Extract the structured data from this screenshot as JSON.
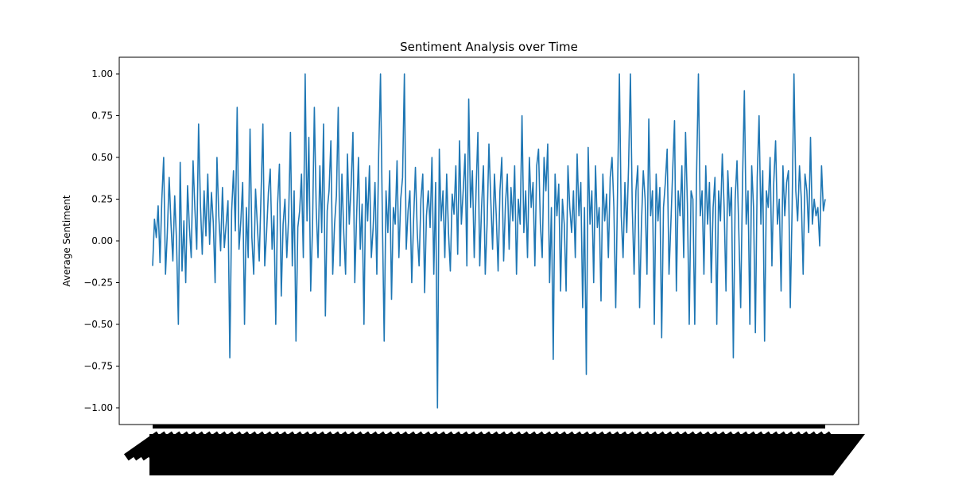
{
  "chart_data": {
    "type": "line",
    "title": "Sentiment Analysis over Time",
    "xlabel": "",
    "ylabel": "Average Sentiment",
    "ylim": [
      -1.1,
      1.1
    ],
    "yticks": [
      1.0,
      0.75,
      0.5,
      0.25,
      0.0,
      -0.25,
      -0.5,
      -0.75,
      -1.0
    ],
    "ytick_labels": [
      "1.00",
      "0.75",
      "0.50",
      "0.25",
      "0.00",
      "−0.25",
      "−0.50",
      "−0.75",
      "−1.00"
    ],
    "xtick_labels_legible": false,
    "xtick_labels_note": "",
    "grid": false,
    "legend": "none",
    "colors": {
      "line": "#1f77b4",
      "axes": "#000000",
      "background": "#ffffff"
    },
    "series": [
      {
        "values": [
          -0.15,
          0.13,
          0.02,
          0.21,
          -0.13,
          0.25,
          0.5,
          -0.2,
          0.05,
          0.38,
          0.1,
          -0.12,
          0.27,
          0.0,
          -0.5,
          0.47,
          -0.18,
          0.12,
          -0.25,
          0.33,
          0.08,
          -0.1,
          0.48,
          0.19,
          -0.05,
          0.7,
          0.22,
          -0.08,
          0.3,
          0.03,
          0.4,
          -0.02,
          0.29,
          0.11,
          -0.25,
          0.5,
          0.15,
          -0.06,
          0.32,
          -0.04,
          0.1,
          0.24,
          -0.7,
          0.18,
          0.42,
          0.06,
          0.8,
          -0.05,
          0.12,
          0.35,
          -0.5,
          0.2,
          -0.1,
          0.67,
          0.02,
          -0.2,
          0.31,
          0.09,
          -0.12,
          0.28,
          0.7,
          -0.15,
          0.05,
          0.29,
          0.43,
          -0.05,
          0.15,
          -0.5,
          0.22,
          0.46,
          -0.33,
          0.1,
          0.25,
          -0.1,
          0.14,
          0.65,
          -0.15,
          0.3,
          -0.6,
          0.08,
          0.18,
          0.4,
          -0.1,
          1.0,
          0.12,
          0.62,
          -0.3,
          0.08,
          0.8,
          0.2,
          -0.1,
          0.45,
          0.05,
          0.7,
          -0.45,
          0.18,
          0.3,
          0.6,
          -0.2,
          0.1,
          0.27,
          0.8,
          -0.15,
          0.4,
          0.05,
          -0.2,
          0.52,
          0.1,
          0.33,
          0.65,
          -0.25,
          0.15,
          0.5,
          -0.05,
          0.22,
          -0.5,
          0.38,
          0.12,
          0.45,
          -0.1,
          0.08,
          0.35,
          -0.2,
          0.52,
          1.0,
          0.15,
          -0.6,
          0.3,
          0.05,
          0.42,
          -0.35,
          0.2,
          0.1,
          0.48,
          -0.1,
          0.25,
          0.38,
          1.0,
          -0.05,
          0.18,
          0.3,
          -0.25,
          0.12,
          0.44,
          0.05,
          -0.15,
          0.25,
          0.4,
          -0.31,
          0.15,
          0.3,
          0.08,
          0.5,
          -0.2,
          0.35,
          -1.0,
          0.55,
          0.12,
          0.3,
          -0.1,
          0.4,
          0.05,
          -0.18,
          0.28,
          0.16,
          0.45,
          -0.08,
          0.6,
          0.1,
          0.3,
          0.52,
          -0.15,
          0.85,
          0.2,
          0.42,
          -0.1,
          0.3,
          0.65,
          -0.15,
          0.2,
          0.45,
          -0.2,
          0.1,
          0.58,
          0.25,
          -0.05,
          0.4,
          0.15,
          -0.18,
          0.3,
          0.5,
          -0.12,
          0.22,
          0.4,
          -0.05,
          0.32,
          0.12,
          0.45,
          -0.2,
          0.25,
          0.1,
          0.75,
          0.05,
          0.3,
          -0.1,
          0.5,
          0.2,
          0.35,
          -0.15,
          0.45,
          0.55,
          0.1,
          -0.1,
          0.5,
          0.3,
          0.58,
          -0.25,
          0.2,
          -0.71,
          0.4,
          0.15,
          0.34,
          -0.3,
          0.25,
          0.1,
          -0.3,
          0.45,
          0.2,
          0.05,
          0.3,
          -0.1,
          0.52,
          0.15,
          0.35,
          -0.4,
          0.2,
          -0.8,
          0.56,
          0.1,
          0.3,
          -0.25,
          0.45,
          0.08,
          0.2,
          -0.36,
          0.4,
          0.12,
          0.28,
          -0.1,
          0.38,
          0.5,
          0.2,
          -0.4,
          0.3,
          1.0,
          0.15,
          -0.1,
          0.35,
          0.05,
          0.45,
          1.0,
          0.2,
          -0.2,
          0.3,
          0.45,
          -0.4,
          0.1,
          0.42,
          0.25,
          -0.2,
          0.73,
          0.15,
          0.3,
          -0.5,
          0.4,
          0.12,
          0.32,
          -0.58,
          0.2,
          0.35,
          0.55,
          -0.2,
          0.1,
          0.42,
          0.72,
          -0.3,
          0.3,
          0.15,
          0.45,
          -0.1,
          0.65,
          0.22,
          -0.5,
          0.3,
          0.25,
          -0.5,
          0.4,
          1.0,
          0.15,
          0.3,
          -0.2,
          0.45,
          0.1,
          0.35,
          -0.25,
          0.2,
          0.38,
          -0.5,
          0.3,
          0.12,
          0.52,
          0.2,
          -0.3,
          0.42,
          0.15,
          0.32,
          -0.7,
          0.25,
          0.48,
          0.05,
          -0.4,
          0.35,
          0.9,
          0.1,
          0.3,
          -0.5,
          0.45,
          0.2,
          -0.55,
          0.38,
          0.75,
          0.1,
          0.42,
          -0.6,
          0.3,
          0.2,
          0.5,
          -0.15,
          0.35,
          0.6,
          0.1,
          0.25,
          -0.3,
          0.45,
          0.15,
          0.35,
          0.42,
          -0.4,
          0.2,
          1.0,
          0.3,
          0.12,
          0.45,
          0.25,
          -0.2,
          0.4,
          0.3,
          0.05,
          0.62,
          0.1,
          0.25,
          0.15,
          0.2,
          -0.03,
          0.45,
          0.18,
          0.25
        ]
      }
    ]
  }
}
